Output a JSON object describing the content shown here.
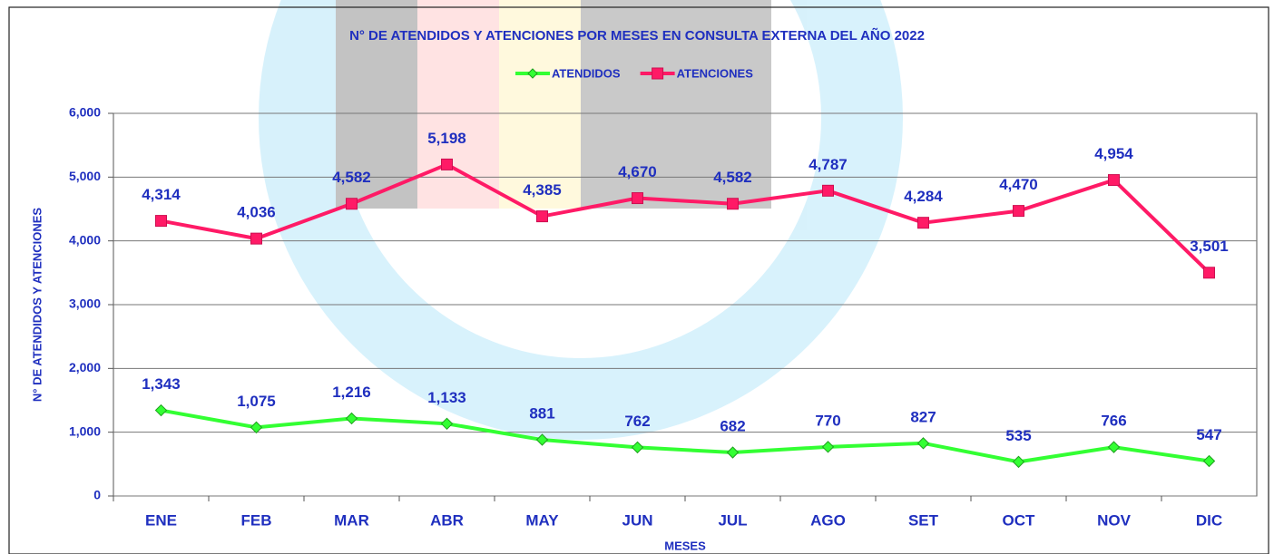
{
  "chart_data": {
    "type": "line",
    "title": "N° DE ATENDIDOS Y ATENCIONES POR MESES EN CONSULTA EXTERNA DEL AÑO 2022",
    "x_label": "MESES",
    "y_label": "N° DE ATENDIDOS Y ATENCIONES",
    "categories": [
      "ENE",
      "FEB",
      "MAR",
      "ABR",
      "MAY",
      "JUN",
      "JUL",
      "AGO",
      "SET",
      "OCT",
      "NOV",
      "DIC"
    ],
    "series": [
      {
        "name": "ATENDIDOS",
        "color": "#33ff33",
        "marker": "diamond",
        "values": [
          1343,
          1075,
          1216,
          1133,
          881,
          762,
          682,
          770,
          827,
          535,
          766,
          547
        ],
        "value_labels": [
          "1,343",
          "1,075",
          "1,216",
          "1,133",
          "881",
          "762",
          "682",
          "770",
          "827",
          "535",
          "766",
          "547"
        ]
      },
      {
        "name": "ATENCIONES",
        "color": "#ff1a66",
        "marker": "square",
        "values": [
          4314,
          4036,
          4582,
          5198,
          4385,
          4670,
          4582,
          4787,
          4284,
          4470,
          4954,
          3501
        ],
        "value_labels": [
          "4,314",
          "4,036",
          "4,582",
          "5,198",
          "4,385",
          "4,670",
          "4,582",
          "4,787",
          "4,284",
          "4,470",
          "4,954",
          "3,501"
        ]
      }
    ],
    "ylim": [
      0,
      6000
    ],
    "yticks": [
      0,
      {
        "value": 1000,
        "label": "1,000"
      },
      {
        "value": 2000,
        "label": "2,000"
      },
      {
        "value": 3000,
        "label": "3,000"
      },
      {
        "value": 4000,
        "label": "4,000"
      },
      {
        "value": 5000,
        "label": "5,000"
      },
      {
        "value": 6000,
        "label": "6,000"
      }
    ],
    "grid": true,
    "legend": "top"
  }
}
